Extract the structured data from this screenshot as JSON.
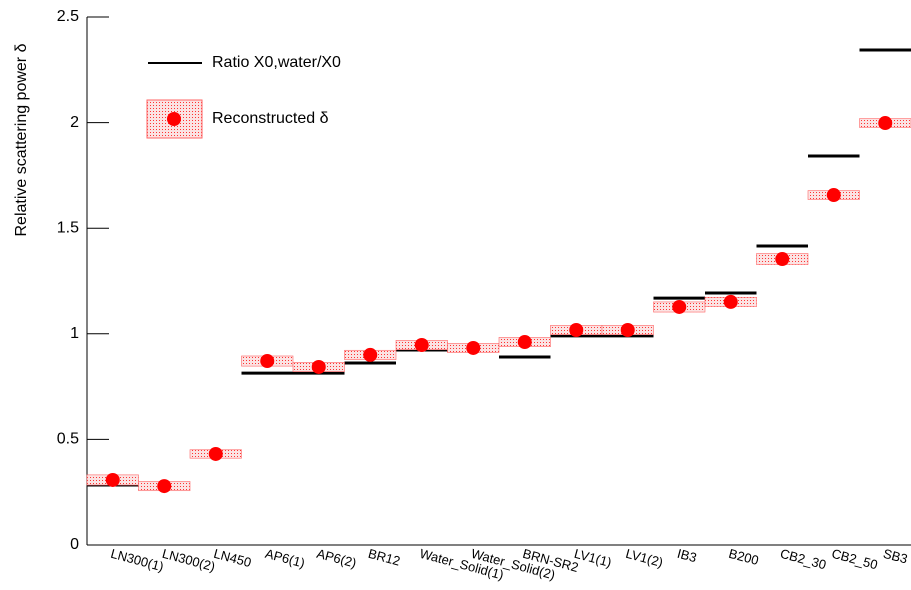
{
  "chart_data": {
    "type": "category-scatter",
    "ylabel": "Relative scattering power δ",
    "categories": [
      "LN300(1)",
      "LN300(2)",
      "LN450",
      "AP6(1)",
      "AP6(2)",
      "BR12",
      "Water_Solid(1)",
      "Water_Solid(2)",
      "BRN-SR2",
      "LV1(1)",
      "LV1(2)",
      "IB3",
      "B200",
      "CB2_30",
      "CB2_50",
      "SB3"
    ],
    "ylim": [
      0,
      2.5
    ],
    "yticks": [
      0,
      0.5,
      1,
      1.5,
      2,
      2.5
    ],
    "series": [
      {
        "name": "Ratio X0,water/X0",
        "marker": "hline",
        "color": "#000000",
        "values": [
          0.284,
          0.284,
          0.421,
          0.814,
          0.814,
          0.862,
          0.923,
          0.923,
          0.89,
          0.99,
          0.99,
          1.169,
          1.193,
          1.416,
          1.842,
          2.344
        ]
      },
      {
        "name": "Reconstructed δ",
        "marker": "circle",
        "color": "#ff0000",
        "values": [
          0.308,
          0.279,
          0.431,
          0.871,
          0.843,
          0.9,
          0.947,
          0.933,
          0.961,
          1.018,
          1.018,
          1.127,
          1.151,
          1.354,
          1.657,
          1.998
        ],
        "errors": [
          0.024,
          0.022,
          0.02,
          0.024,
          0.022,
          0.022,
          0.022,
          0.022,
          0.022,
          0.022,
          0.022,
          0.024,
          0.022,
          0.026,
          0.021,
          0.021
        ]
      }
    ]
  }
}
